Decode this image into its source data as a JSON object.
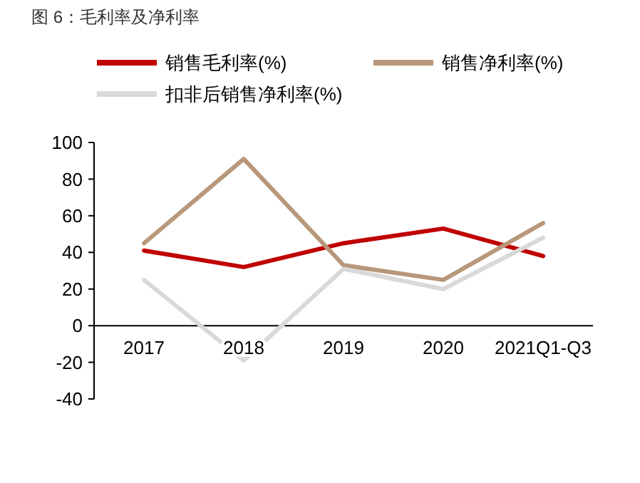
{
  "chart_data": {
    "type": "line",
    "title": "图 6：毛利率及净利率",
    "categories": [
      "2017",
      "2018",
      "2019",
      "2020",
      "2021Q1-Q3"
    ],
    "series": [
      {
        "name": "销售毛利率(%)",
        "color": "#c00000",
        "values": [
          41,
          32,
          45,
          53,
          38
        ]
      },
      {
        "name": "销售净利率(%)",
        "color": "#b8977a",
        "values": [
          45,
          91,
          33,
          25,
          56
        ]
      },
      {
        "name": "扣非后销售净利率(%)",
        "color": "#d9d9d9",
        "values": [
          25,
          -19,
          31,
          20,
          48
        ]
      }
    ],
    "ylim": [
      -40,
      100
    ],
    "yticks": [
      -40,
      -20,
      0,
      20,
      40,
      60,
      80,
      100
    ],
    "grid": false,
    "legend": "top",
    "marker": "none",
    "line_style": "solid"
  }
}
